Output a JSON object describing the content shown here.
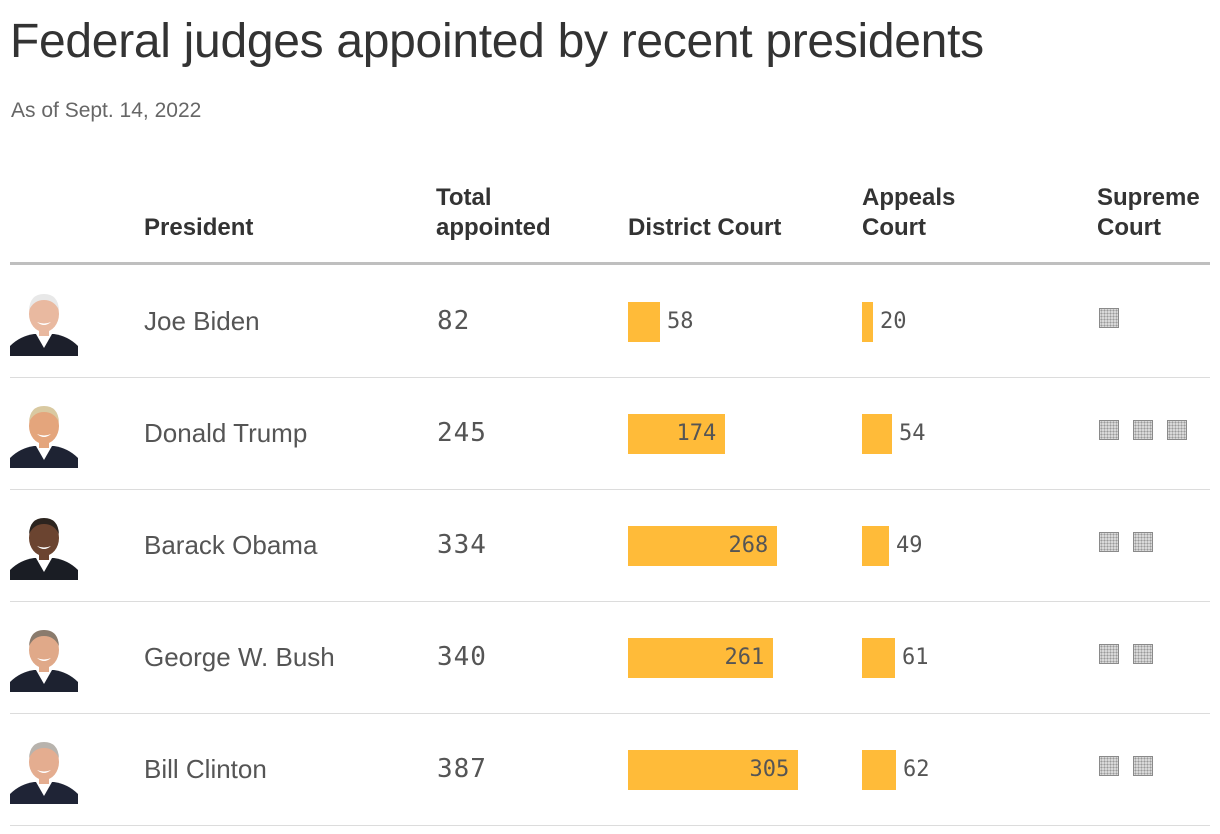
{
  "title": "Federal judges appointed by recent presidents",
  "subtitle": "As of Sept. 14, 2022",
  "headers": {
    "president": "President",
    "total_line1": "Total",
    "total_line2": "appointed",
    "district": "District Court",
    "appeals_line1": "Appeals",
    "appeals_line2": "Court",
    "supreme_line1": "Supreme",
    "supreme_line2": "Court"
  },
  "colors": {
    "bar": "#ffbb39",
    "text": "#333333",
    "muted": "#555555"
  },
  "chart_data": {
    "type": "table",
    "title": "Federal judges appointed by recent presidents",
    "subtitle": "As of Sept. 14, 2022",
    "columns": [
      "President",
      "Total appointed",
      "District Court",
      "Appeals Court",
      "Supreme Court"
    ],
    "rows": [
      {
        "president": "Joe Biden",
        "portrait_icon": "joe-biden-portrait-icon",
        "total": 82,
        "district": 58,
        "appeals": 20,
        "supreme": 1
      },
      {
        "president": "Donald Trump",
        "portrait_icon": "donald-trump-portrait-icon",
        "total": 245,
        "district": 174,
        "appeals": 54,
        "supreme": 3
      },
      {
        "president": "Barack Obama",
        "portrait_icon": "barack-obama-portrait-icon",
        "total": 334,
        "district": 268,
        "appeals": 49,
        "supreme": 2
      },
      {
        "president": "George W. Bush",
        "portrait_icon": "george-w-bush-portrait-icon",
        "total": 340,
        "district": 261,
        "appeals": 61,
        "supreme": 2
      },
      {
        "president": "Bill Clinton",
        "portrait_icon": "bill-clinton-portrait-icon",
        "total": 387,
        "district": 305,
        "appeals": 62,
        "supreme": 2
      }
    ]
  }
}
